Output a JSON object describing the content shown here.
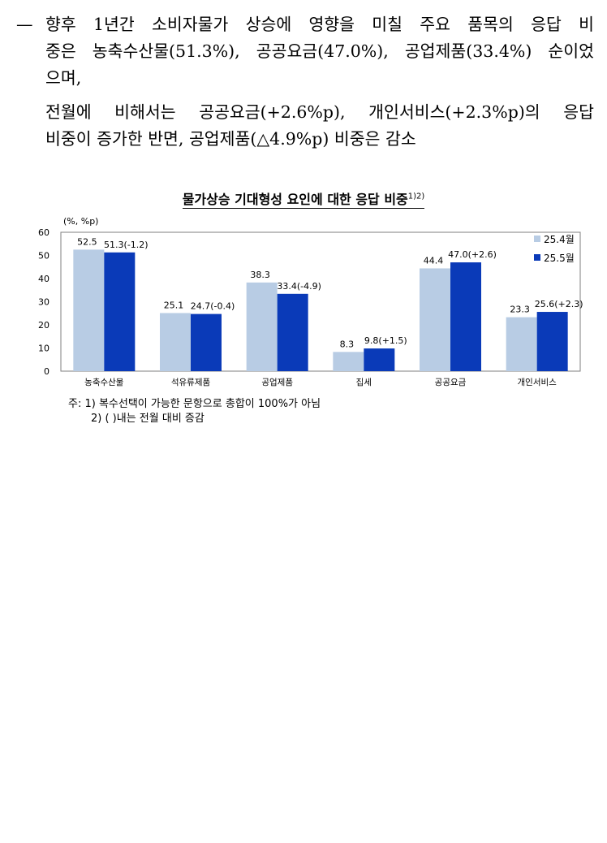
{
  "paragraphs": {
    "p1": {
      "dash": "—",
      "line1": "향후 1년간 소비자물가 상승에 영향을 미칠 주요 품목의 응답 비",
      "line2": "중은 농축수산물(51.3%), 공공요금(47.0%), 공업제품(33.4%) 순이었",
      "line3": "으며,"
    },
    "p2": {
      "line1": "전월에 비해서는 공공요금(+2.6%p), 개인서비스(+2.3%p)의 응답",
      "line2": "비중이 증가한 반면, 공업제품(△4.9%p) 비중은 감소"
    }
  },
  "chart_title": "물가상승 기대형성 요인에 대한 응답 비중",
  "chart_title_sup": "1)2)",
  "chart_data": {
    "type": "bar",
    "unit_label": "(%, %p)",
    "categories": [
      "농축수산물",
      "석유류제품",
      "공업제품",
      "집세",
      "공공요금",
      "개인서비스"
    ],
    "series": [
      {
        "name": "25.4월",
        "color": "#b8cce4",
        "values": [
          52.5,
          25.1,
          38.3,
          8.3,
          44.4,
          23.3
        ],
        "labels": [
          "52.5",
          "25.1",
          "38.3",
          "8.3",
          "44.4",
          "23.3"
        ]
      },
      {
        "name": "25.5월",
        "color": "#0a3ab8",
        "values": [
          51.3,
          24.7,
          33.4,
          9.8,
          47.0,
          25.6
        ],
        "labels": [
          "51.3(-1.2)",
          "24.7(-0.4)",
          "33.4(-4.9)",
          "9.8(+1.5)",
          "47.0(+2.6)",
          "25.6(+2.3)"
        ]
      }
    ],
    "ylim": [
      0,
      60
    ],
    "yticks": [
      0,
      10,
      20,
      30,
      40,
      50,
      60
    ],
    "legend_position": "top-right",
    "grid": false
  },
  "notes": {
    "note1": "주: 1) 복수선택이 가능한 문항으로 총합이 100%가 아님",
    "note2": "2) ( )내는 전월 대비 증감"
  }
}
